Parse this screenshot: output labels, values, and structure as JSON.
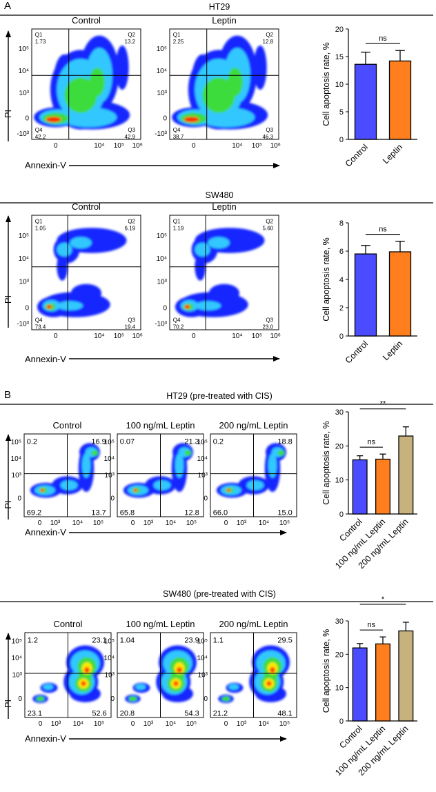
{
  "colors": {
    "control": "#4b4bff",
    "leptin100": "#ff7f1e",
    "leptin200": "#c7b27d",
    "flow_outer": "#1428ff",
    "flow_mid": "#33c8ff",
    "flow_core": "#3cdc3c",
    "flow_hot": "#ff2a00",
    "bar_edge": "#000000"
  },
  "flow_tick_sets": {
    "full": [
      "10⁵",
      "10⁴",
      "10³",
      "0",
      "-10³"
    ],
    "short": [
      "10⁵",
      "10⁴",
      "10³",
      "0"
    ],
    "x_full": [
      "0",
      "10⁴",
      "10⁵",
      "10⁶"
    ],
    "x_short": [
      "0",
      "10³",
      "10⁴",
      "10⁵"
    ]
  },
  "sections": [
    {
      "panel_letter": "A",
      "title": "HT29",
      "flow": {
        "style": "sparse",
        "x_axis_label": "Annexin-V",
        "y_axis_label": "PI",
        "plots": [
          {
            "name": "Control",
            "quadrants": [
              {
                "label": "Q1",
                "value": "1.73"
              },
              {
                "label": "Q2",
                "value": "13.2"
              },
              {
                "label": "Q3",
                "value": "42.9"
              },
              {
                "label": "Q4",
                "value": "42.2"
              }
            ]
          },
          {
            "name": "Leptin",
            "quadrants": [
              {
                "label": "Q1",
                "value": "2.25"
              },
              {
                "label": "Q2",
                "value": "12.8"
              },
              {
                "label": "Q3",
                "value": "46.3"
              },
              {
                "label": "Q4",
                "value": "38.7"
              }
            ]
          }
        ]
      }
    },
    {
      "panel_letter": "",
      "title": "SW480",
      "flow": {
        "style": "split",
        "x_axis_label": "Annexin-V",
        "y_axis_label": "PI",
        "plots": [
          {
            "name": "Control",
            "quadrants": [
              {
                "label": "Q1",
                "value": "1.05"
              },
              {
                "label": "Q2",
                "value": "6.19"
              },
              {
                "label": "Q3",
                "value": "19.4"
              },
              {
                "label": "Q4",
                "value": "73.4"
              }
            ]
          },
          {
            "name": "Leptin",
            "quadrants": [
              {
                "label": "Q1",
                "value": "1.19"
              },
              {
                "label": "Q2",
                "value": "5.60"
              },
              {
                "label": "Q3",
                "value": "23.0"
              },
              {
                "label": "Q4",
                "value": "70.2"
              }
            ]
          }
        ]
      }
    },
    {
      "panel_letter": "B",
      "title": "HT29 (pre-treated with CIS)",
      "flow": {
        "style": "hook",
        "x_axis_label": "Annexin-V",
        "y_axis_label": "PI",
        "plots": [
          {
            "name": "Control",
            "quadrants": [
              {
                "label": "",
                "value": "0.2"
              },
              {
                "label": "",
                "value": "16.9"
              },
              {
                "label": "",
                "value": "13.7"
              },
              {
                "label": "",
                "value": "69.2"
              }
            ]
          },
          {
            "name": "100 ng/mL Leptin",
            "quadrants": [
              {
                "label": "",
                "value": "0.07"
              },
              {
                "label": "",
                "value": "21.3"
              },
              {
                "label": "",
                "value": "12.8"
              },
              {
                "label": "",
                "value": "65.8"
              }
            ]
          },
          {
            "name": "200 ng/mL Leptin",
            "quadrants": [
              {
                "label": "",
                "value": "0.2"
              },
              {
                "label": "",
                "value": "18.8"
              },
              {
                "label": "",
                "value": "15.0"
              },
              {
                "label": "",
                "value": "66.0"
              }
            ]
          }
        ]
      }
    },
    {
      "panel_letter": "",
      "title": "SW480 (pre-treated with CIS)",
      "flow": {
        "style": "dense",
        "x_axis_label": "Annexin-V",
        "y_axis_label": "PI",
        "plots": [
          {
            "name": "Control",
            "quadrants": [
              {
                "label": "",
                "value": "1.2"
              },
              {
                "label": "",
                "value": "23.1"
              },
              {
                "label": "",
                "value": "52.6"
              },
              {
                "label": "",
                "value": "23.1"
              }
            ]
          },
          {
            "name": "100 ng/mL Leptin",
            "quadrants": [
              {
                "label": "",
                "value": "1.04"
              },
              {
                "label": "",
                "value": "23.9"
              },
              {
                "label": "",
                "value": "54.3"
              },
              {
                "label": "",
                "value": "20.8"
              }
            ]
          },
          {
            "name": "200 ng/mL Leptin",
            "quadrants": [
              {
                "label": "",
                "value": "1.1"
              },
              {
                "label": "",
                "value": "29.5"
              },
              {
                "label": "",
                "value": "48.1"
              },
              {
                "label": "",
                "value": "21.2"
              }
            ]
          }
        ]
      }
    }
  ],
  "chart_data": [
    {
      "type": "bar",
      "title": "HT29",
      "ylabel": "Cell apoptosis rate, %",
      "xlabel": "",
      "ylim": [
        0,
        20
      ],
      "yticks": [
        0,
        5,
        10,
        15,
        20
      ],
      "categories": [
        "Control",
        "Leptin"
      ],
      "values": [
        13.6,
        14.2
      ],
      "errors": [
        2.2,
        1.9
      ],
      "significance": [
        {
          "from": 0,
          "to": 1,
          "label": "ns"
        }
      ]
    },
    {
      "type": "bar",
      "title": "SW480",
      "ylabel": "Cell apoptosis rate, %",
      "xlabel": "",
      "ylim": [
        0,
        8
      ],
      "yticks": [
        0,
        2,
        4,
        6,
        8
      ],
      "categories": [
        "Control",
        "Leptin"
      ],
      "values": [
        5.8,
        5.95
      ],
      "errors": [
        0.6,
        0.75
      ],
      "significance": [
        {
          "from": 0,
          "to": 1,
          "label": "ns"
        }
      ]
    },
    {
      "type": "bar",
      "title": "HT29 (pre-treated with CIS)",
      "ylabel": "Cell apoptosis rate, %",
      "xlabel": "",
      "ylim": [
        0,
        30
      ],
      "yticks": [
        0,
        10,
        20,
        30
      ],
      "categories": [
        "Control",
        "100 ng/mL Leptin",
        "200 ng/mL Leptin"
      ],
      "values": [
        15.9,
        16.1,
        22.9
      ],
      "errors": [
        1.2,
        1.5,
        2.7
      ],
      "significance": [
        {
          "from": 0,
          "to": 1,
          "label": "ns"
        },
        {
          "from": 0,
          "to": 2,
          "label": "**"
        }
      ]
    },
    {
      "type": "bar",
      "title": "SW480 (pre-treated with CIS)",
      "ylabel": "Cell apoptosis rate, %",
      "xlabel": "",
      "ylim": [
        0,
        30
      ],
      "yticks": [
        0,
        10,
        20,
        30
      ],
      "categories": [
        "Control",
        "100 ng/mL Leptin",
        "200 ng/mL Leptin"
      ],
      "values": [
        21.9,
        23.1,
        27.0
      ],
      "errors": [
        1.3,
        2.1,
        2.6
      ],
      "significance": [
        {
          "from": 0,
          "to": 1,
          "label": "ns"
        },
        {
          "from": 0,
          "to": 2,
          "label": "*"
        }
      ]
    }
  ]
}
